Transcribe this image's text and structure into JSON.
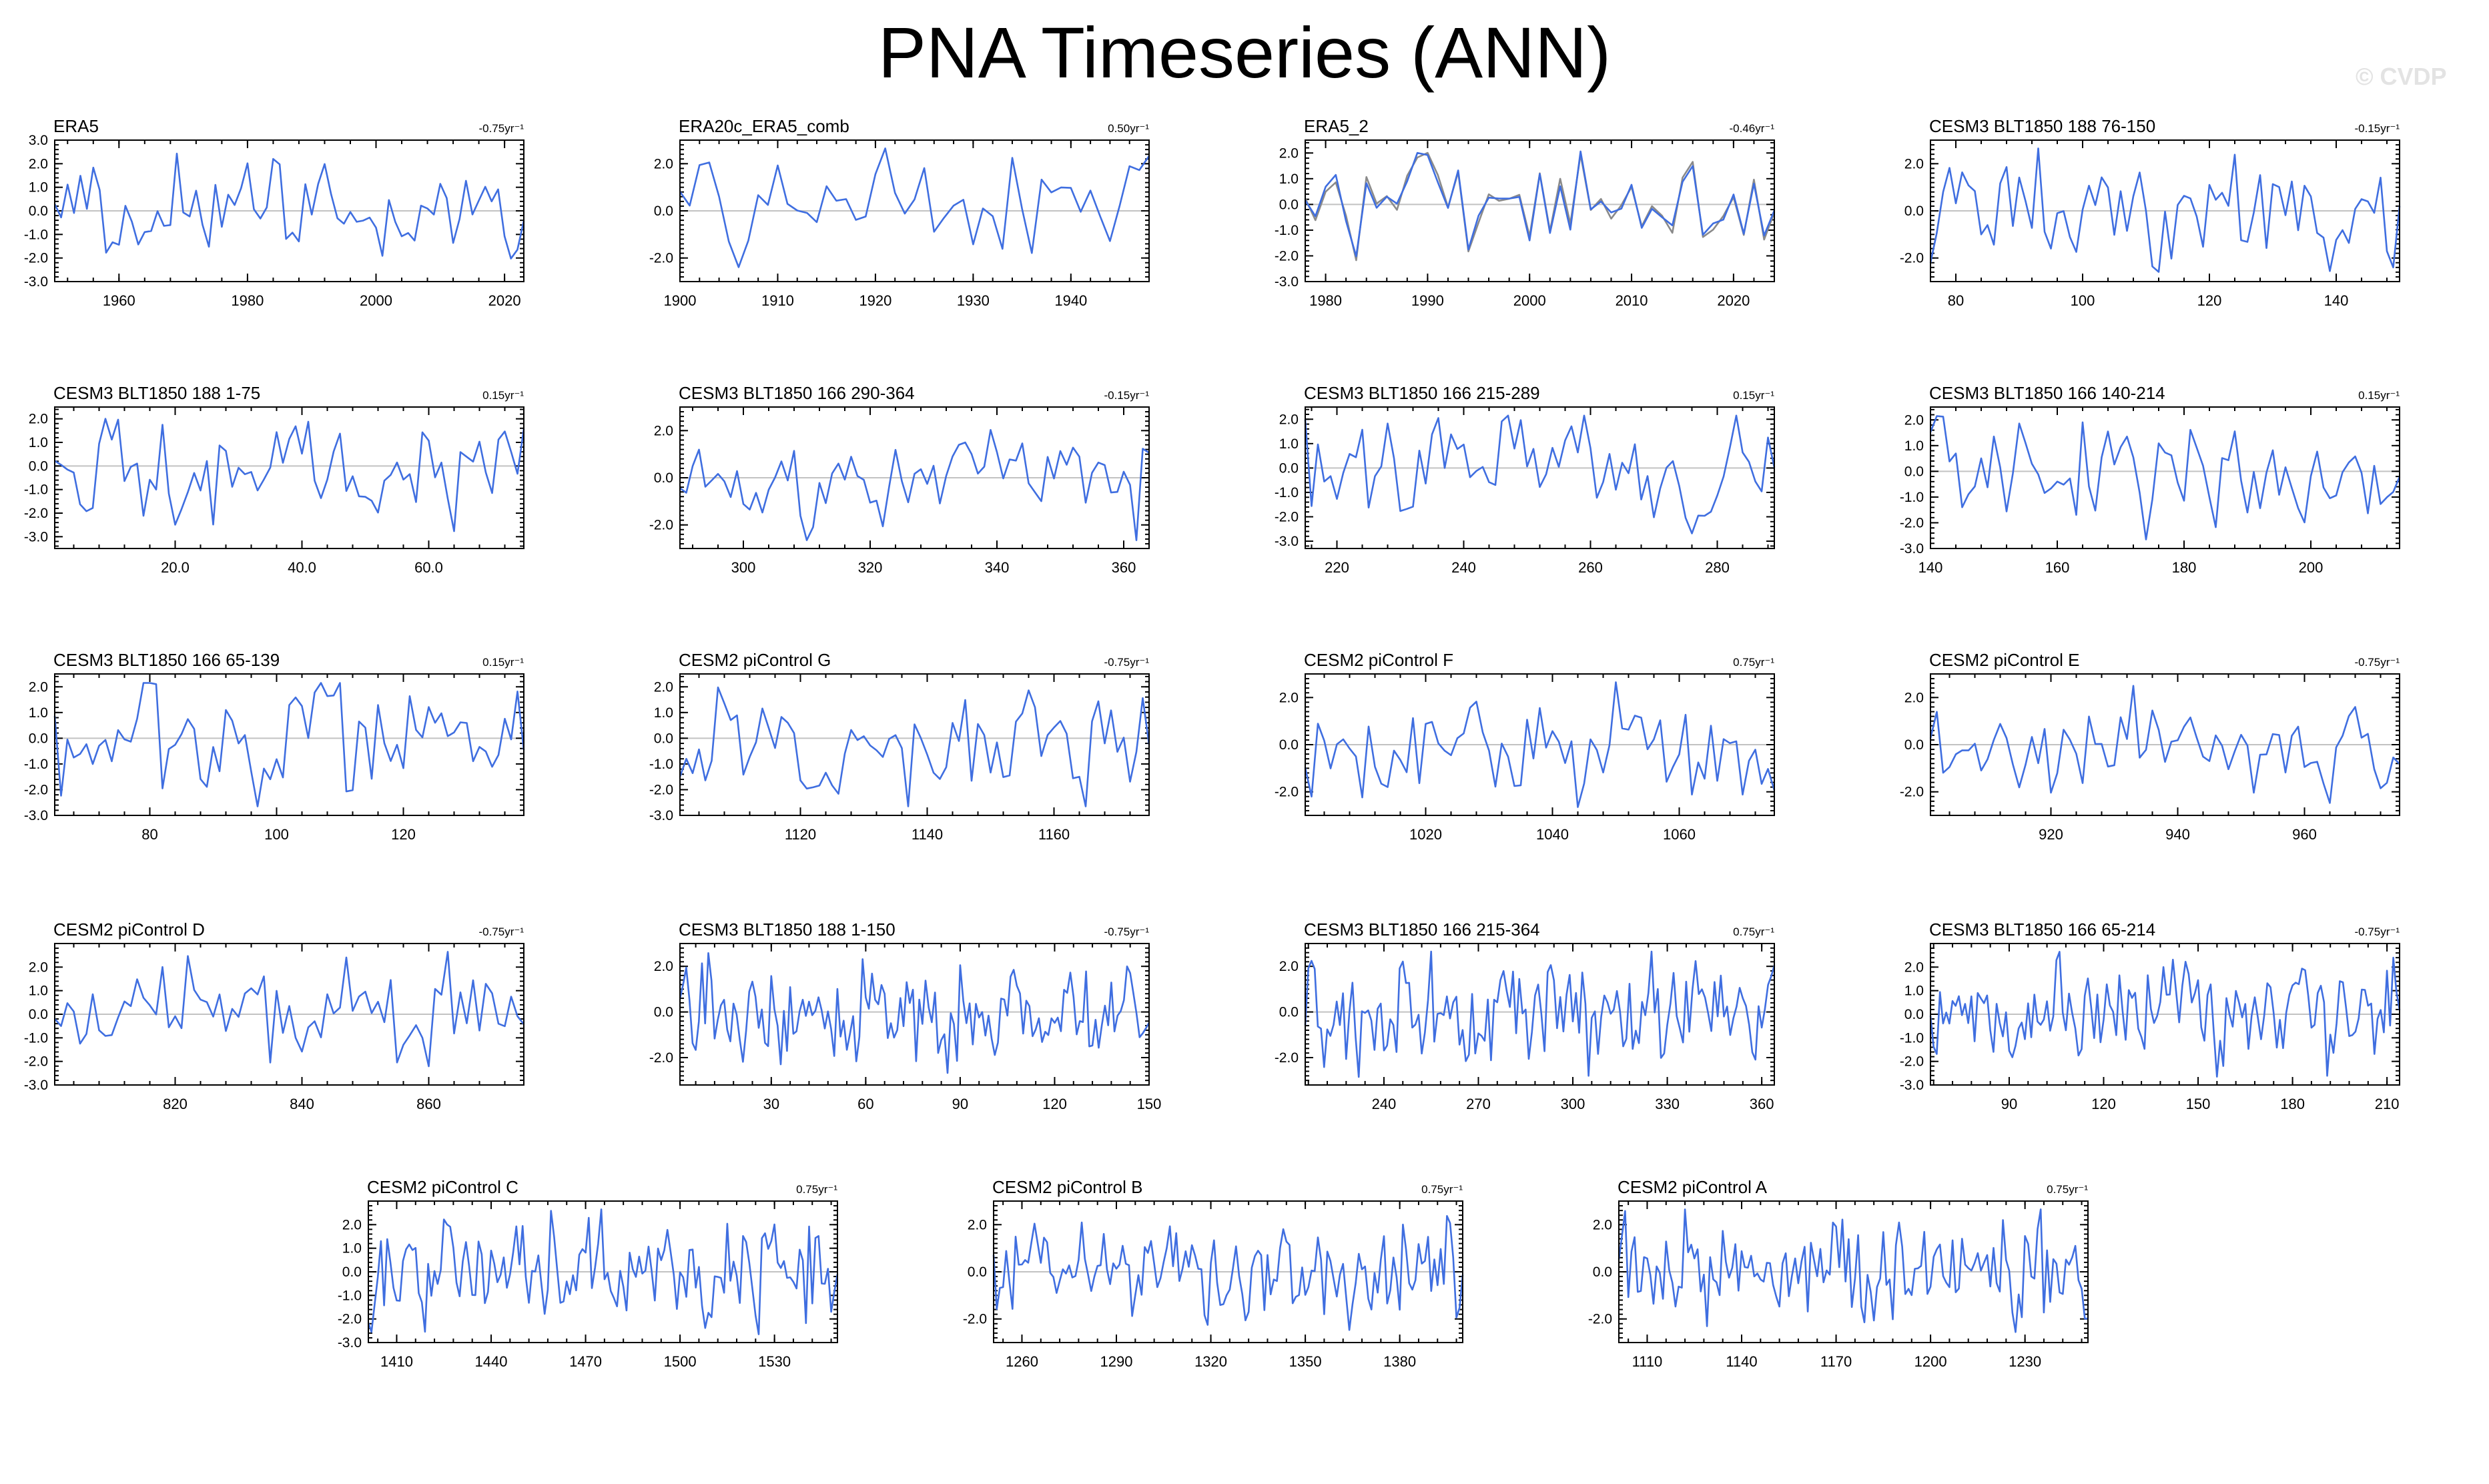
{
  "page_title": "PNA Timeseries (ANN)",
  "watermark": "© CVDP",
  "colors": {
    "series": "#3f6ee0",
    "secondary": "#8a8a8a",
    "zero_line": "#c2c2c2"
  },
  "chart_data": [
    {
      "type": "line",
      "title": "ERA5",
      "trend_label": "-0.75yr⁻¹",
      "x_range": [
        1950,
        2023
      ],
      "ylim": [
        -3,
        3
      ],
      "x_ticks": [
        1960,
        1980,
        2000,
        2020
      ],
      "x_tick_labels": [
        "1960",
        "1980",
        "2000",
        "2020"
      ],
      "y_ticks": [
        -3,
        -2,
        -1,
        0,
        1,
        2,
        3
      ],
      "y_tick_labels": [
        "-3.0",
        "-2.0",
        "-1.0",
        "0.0",
        "1.0",
        "2.0",
        "3.0"
      ],
      "seed": 11
    },
    {
      "type": "line",
      "title": "ERA20c_ERA5_comb",
      "trend_label": "0.50yr⁻¹",
      "x_range": [
        1900,
        1948
      ],
      "ylim": [
        -3,
        3
      ],
      "x_ticks": [
        1900,
        1910,
        1920,
        1930,
        1940
      ],
      "x_tick_labels": [
        "1900",
        "1910",
        "1920",
        "1930",
        "1940"
      ],
      "y_ticks": [
        -2,
        0,
        2
      ],
      "y_tick_labels": [
        "-2.0",
        "0.0",
        "2.0"
      ],
      "seed": 23
    },
    {
      "type": "line",
      "title": "ERA5_2",
      "trend_label": "-0.46yr⁻¹",
      "x_range": [
        1978,
        2024
      ],
      "ylim": [
        -3,
        2.5
      ],
      "x_ticks": [
        1980,
        1990,
        2000,
        2010,
        2020
      ],
      "x_tick_labels": [
        "1980",
        "1990",
        "2000",
        "2010",
        "2020"
      ],
      "y_ticks": [
        -3,
        -2,
        -1,
        0,
        1,
        2
      ],
      "y_tick_labels": [
        "-3.0",
        "-2.0",
        "-1.0",
        "0.0",
        "1.0",
        "2.0"
      ],
      "seed": 37,
      "secondary": true
    },
    {
      "type": "line",
      "title": "CESM3 BLT1850 188 76-150",
      "trend_label": "-0.15yr⁻¹",
      "x_range": [
        76,
        150
      ],
      "ylim": [
        -3,
        3
      ],
      "x_ticks": [
        80,
        100,
        120,
        140
      ],
      "x_tick_labels": [
        "80",
        "100",
        "120",
        "140"
      ],
      "y_ticks": [
        -2,
        0,
        2
      ],
      "y_tick_labels": [
        "-2.0",
        "0.0",
        "2.0"
      ],
      "seed": 41
    },
    {
      "type": "line",
      "title": "CESM3 BLT1850 188 1-75",
      "trend_label": "0.15yr⁻¹",
      "x_range": [
        1,
        75
      ],
      "ylim": [
        -3.5,
        2.5
      ],
      "x_ticks": [
        20,
        40,
        60
      ],
      "x_tick_labels": [
        "20.0",
        "40.0",
        "60.0"
      ],
      "y_ticks": [
        -3,
        -2,
        -1,
        0,
        1,
        2
      ],
      "y_tick_labels": [
        "-3.0",
        "-2.0",
        "-1.0",
        "0.0",
        "1.0",
        "2.0"
      ],
      "seed": 53
    },
    {
      "type": "line",
      "title": "CESM3 BLT1850 166 290-364",
      "trend_label": "-0.15yr⁻¹",
      "x_range": [
        290,
        364
      ],
      "ylim": [
        -3,
        3
      ],
      "x_ticks": [
        300,
        320,
        340,
        360
      ],
      "x_tick_labels": [
        "300",
        "320",
        "340",
        "360"
      ],
      "y_ticks": [
        -2,
        0,
        2
      ],
      "y_tick_labels": [
        "-2.0",
        "0.0",
        "2.0"
      ],
      "seed": 67
    },
    {
      "type": "line",
      "title": "CESM3 BLT1850 166 215-289",
      "trend_label": "0.15yr⁻¹",
      "x_range": [
        215,
        289
      ],
      "ylim": [
        -3.3,
        2.5
      ],
      "x_ticks": [
        220,
        240,
        260,
        280
      ],
      "x_tick_labels": [
        "220",
        "240",
        "260",
        "280"
      ],
      "y_ticks": [
        -3,
        -2,
        -1,
        0,
        1,
        2
      ],
      "y_tick_labels": [
        "-3.0",
        "-2.0",
        "-1.0",
        "0.0",
        "1.0",
        "2.0"
      ],
      "seed": 79
    },
    {
      "type": "line",
      "title": "CESM3 BLT1850 166 140-214",
      "trend_label": "0.15yr⁻¹",
      "x_range": [
        140,
        214
      ],
      "ylim": [
        -3,
        2.5
      ],
      "x_ticks": [
        140,
        160,
        180,
        200
      ],
      "x_tick_labels": [
        "140",
        "160",
        "180",
        "200"
      ],
      "y_ticks": [
        -3,
        -2,
        -1,
        0,
        1,
        2
      ],
      "y_tick_labels": [
        "-3.0",
        "-2.0",
        "-1.0",
        "0.0",
        "1.0",
        "2.0"
      ],
      "seed": 83
    },
    {
      "type": "line",
      "title": "CESM3 BLT1850 166 65-139",
      "trend_label": "0.15yr⁻¹",
      "x_range": [
        65,
        139
      ],
      "ylim": [
        -3,
        2.5
      ],
      "x_ticks": [
        80,
        100,
        120
      ],
      "x_tick_labels": [
        "80",
        "100",
        "120"
      ],
      "y_ticks": [
        -3,
        -2,
        -1,
        0,
        1,
        2
      ],
      "y_tick_labels": [
        "-3.0",
        "-2.0",
        "-1.0",
        "0.0",
        "1.0",
        "2.0"
      ],
      "seed": 97
    },
    {
      "type": "line",
      "title": "CESM2 piControl G",
      "trend_label": "-0.75yr⁻¹",
      "x_range": [
        1101,
        1175
      ],
      "ylim": [
        -3,
        2.5
      ],
      "x_ticks": [
        1120,
        1140,
        1160
      ],
      "x_tick_labels": [
        "1120",
        "1140",
        "1160"
      ],
      "y_ticks": [
        -3,
        -2,
        -1,
        0,
        1,
        2
      ],
      "y_tick_labels": [
        "-3.0",
        "-2.0",
        "-1.0",
        "0.0",
        "1.0",
        "2.0"
      ],
      "seed": 101
    },
    {
      "type": "line",
      "title": "CESM2 piControl F",
      "trend_label": "0.75yr⁻¹",
      "x_range": [
        1001,
        1075
      ],
      "ylim": [
        -3,
        3
      ],
      "x_ticks": [
        1020,
        1040,
        1060
      ],
      "x_tick_labels": [
        "1020",
        "1040",
        "1060"
      ],
      "y_ticks": [
        -2,
        0,
        2
      ],
      "y_tick_labels": [
        "-2.0",
        "0.0",
        "2.0"
      ],
      "seed": 113
    },
    {
      "type": "line",
      "title": "CESM2 piControl E",
      "trend_label": "-0.75yr⁻¹",
      "x_range": [
        901,
        975
      ],
      "ylim": [
        -3,
        3
      ],
      "x_ticks": [
        920,
        940,
        960
      ],
      "x_tick_labels": [
        "920",
        "940",
        "960"
      ],
      "y_ticks": [
        -2,
        0,
        2
      ],
      "y_tick_labels": [
        "-2.0",
        "0.0",
        "2.0"
      ],
      "seed": 127
    },
    {
      "type": "line",
      "title": "CESM2 piControl D",
      "trend_label": "-0.75yr⁻¹",
      "x_range": [
        801,
        875
      ],
      "ylim": [
        -3,
        3
      ],
      "x_ticks": [
        820,
        840,
        860
      ],
      "x_tick_labels": [
        "820",
        "840",
        "860"
      ],
      "y_ticks": [
        -3,
        -2,
        -1,
        0,
        1,
        2
      ],
      "y_tick_labels": [
        "-3.0",
        "-2.0",
        "-1.0",
        "0.0",
        "1.0",
        "2.0"
      ],
      "seed": 131
    },
    {
      "type": "line",
      "title": "CESM3 BLT1850 188 1-150",
      "trend_label": "-0.75yr⁻¹",
      "x_range": [
        1,
        150
      ],
      "ylim": [
        -3.2,
        3
      ],
      "x_ticks": [
        30,
        60,
        90,
        120,
        150
      ],
      "x_tick_labels": [
        "30",
        "60",
        "90",
        "120",
        "150"
      ],
      "y_ticks": [
        -2,
        0,
        2
      ],
      "y_tick_labels": [
        "-2.0",
        "0.0",
        "2.0"
      ],
      "seed": 149
    },
    {
      "type": "line",
      "title": "CESM3 BLT1850 166 215-364",
      "trend_label": "0.75yr⁻¹",
      "x_range": [
        215,
        364
      ],
      "ylim": [
        -3.2,
        3
      ],
      "x_ticks": [
        240,
        270,
        300,
        330,
        360
      ],
      "x_tick_labels": [
        "240",
        "270",
        "300",
        "330",
        "360"
      ],
      "y_ticks": [
        -2,
        0,
        2
      ],
      "y_tick_labels": [
        "-2.0",
        "0.0",
        "2.0"
      ],
      "seed": 151
    },
    {
      "type": "line",
      "title": "CESM3 BLT1850 166 65-214",
      "trend_label": "-0.75yr⁻¹",
      "x_range": [
        65,
        214
      ],
      "ylim": [
        -3,
        3
      ],
      "x_ticks": [
        90,
        120,
        150,
        180,
        210
      ],
      "x_tick_labels": [
        "90",
        "120",
        "150",
        "180",
        "210"
      ],
      "y_ticks": [
        -3,
        -2,
        -1,
        0,
        1,
        2
      ],
      "y_tick_labels": [
        "-3.0",
        "-2.0",
        "-1.0",
        "0.0",
        "1.0",
        "2.0"
      ],
      "seed": 163
    },
    {
      "type": "line",
      "title": "CESM2 piControl C",
      "trend_label": "0.75yr⁻¹",
      "x_range": [
        1401,
        1550
      ],
      "ylim": [
        -3,
        3
      ],
      "x_ticks": [
        1410,
        1440,
        1470,
        1500,
        1530
      ],
      "x_tick_labels": [
        "1410",
        "1440",
        "1470",
        "1500",
        "1530"
      ],
      "y_ticks": [
        -3,
        -2,
        -1,
        0,
        1,
        2
      ],
      "y_tick_labels": [
        "-3.0",
        "-2.0",
        "-1.0",
        "0.0",
        "1.0",
        "2.0"
      ],
      "seed": 173
    },
    {
      "type": "line",
      "title": "CESM2 piControl B",
      "trend_label": "0.75yr⁻¹",
      "x_range": [
        1251,
        1400
      ],
      "ylim": [
        -3,
        3
      ],
      "x_ticks": [
        1260,
        1290,
        1320,
        1350,
        1380
      ],
      "x_tick_labels": [
        "1260",
        "1290",
        "1320",
        "1350",
        "1380"
      ],
      "y_ticks": [
        -2,
        0,
        2
      ],
      "y_tick_labels": [
        "-2.0",
        "0.0",
        "2.0"
      ],
      "seed": 181
    },
    {
      "type": "line",
      "title": "CESM2 piControl A",
      "trend_label": "0.75yr⁻¹",
      "x_range": [
        1101,
        1250
      ],
      "ylim": [
        -3,
        3
      ],
      "x_ticks": [
        1110,
        1140,
        1170,
        1200,
        1230
      ],
      "x_tick_labels": [
        "1110",
        "1140",
        "1170",
        "1200",
        "1230"
      ],
      "y_ticks": [
        -2,
        0,
        2
      ],
      "y_tick_labels": [
        "-2.0",
        "0.0",
        "2.0"
      ],
      "seed": 191
    }
  ]
}
